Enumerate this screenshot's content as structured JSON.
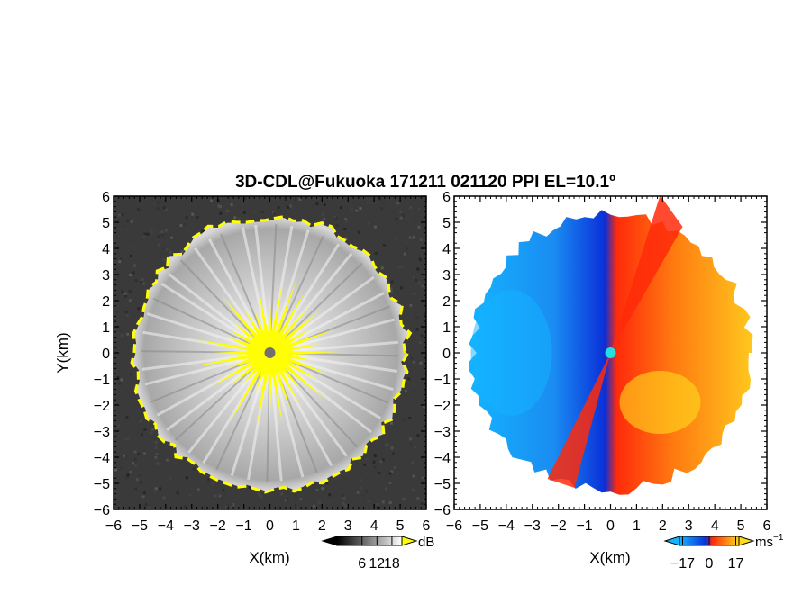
{
  "figure": {
    "title": "3D-CDL@Fukuoka 171211 021120 PPI EL=10.1º"
  },
  "chart_data": [
    {
      "type": "heatmap",
      "panel": "left",
      "quantity": "signal-to-noise ratio",
      "xlabel": "X(km)",
      "ylabel": "Y(km)",
      "xlim": [
        -6,
        6
      ],
      "ylim": [
        -6,
        6
      ],
      "xticks": [
        "−6",
        "−5",
        "−4",
        "−3",
        "−2",
        "−1",
        "0",
        "1",
        "2",
        "3",
        "4",
        "5",
        "6"
      ],
      "yticks": [
        "−6",
        "−5",
        "−4",
        "−3",
        "−2",
        "−1",
        "0",
        "1",
        "2",
        "3",
        "4",
        "5",
        "6"
      ],
      "colormap": "grayscale",
      "range_radius_km_approx": 5.2,
      "saturation_color": "#ffff00",
      "background_color": "#3a3a3a",
      "colorbar": {
        "unit": "dB",
        "tick_labels": [
          "6",
          "12",
          "18"
        ],
        "tick_values": [
          6,
          12,
          18
        ],
        "extend": "both"
      }
    },
    {
      "type": "heatmap",
      "panel": "right",
      "quantity": "radial velocity",
      "xlabel": "X(km)",
      "ylabel": "",
      "xlim": [
        -6,
        6
      ],
      "ylim": [
        -6,
        6
      ],
      "xticks": [
        "−6",
        "−5",
        "−4",
        "−3",
        "−2",
        "−1",
        "0",
        "1",
        "2",
        "3",
        "4",
        "5",
        "6"
      ],
      "yticks": [
        "−6",
        "−5",
        "−4",
        "−3",
        "−2",
        "−1",
        "0",
        "1",
        "2",
        "3",
        "4",
        "5",
        "6"
      ],
      "colormap": "blue-cyan-red-yellow diverging",
      "range_radius_km_approx": 5.3,
      "colors": {
        "neg_strong": "#0a2fd8",
        "neg_weak": "#14b4ff",
        "pos_weak": "#ffdc1e",
        "pos_strong": "#ff2a0a",
        "zero": "#22e0e0"
      },
      "colorbar": {
        "unit": "ms",
        "unit_exponent": "−1",
        "tick_labels": [
          "−17",
          "0",
          "17"
        ],
        "tick_values": [
          -17,
          0,
          17
        ],
        "extend": "both"
      }
    }
  ]
}
